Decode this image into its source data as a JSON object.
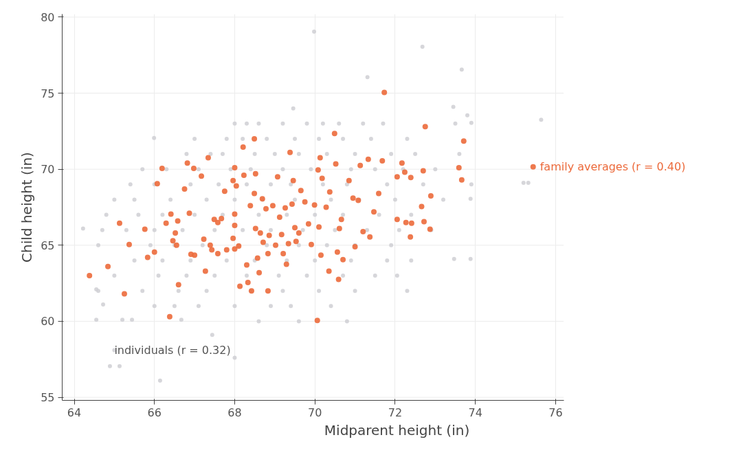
{
  "chart_data": {
    "type": "scatter",
    "xlabel": "Midparent height (in)",
    "ylabel": "Child height (in)",
    "xlim": [
      63.7,
      76.2
    ],
    "ylim": [
      54.8,
      80.2
    ],
    "xticks": [
      64,
      66,
      68,
      70,
      72,
      74,
      76
    ],
    "yticks": [
      55,
      60,
      65,
      70,
      75,
      80
    ],
    "grid": true,
    "marker": "circle",
    "series": [
      {
        "name": "individuals (r = 0.32)",
        "color": "#cfcfd4",
        "x": [
          64.22,
          64.55,
          64.55,
          64.72,
          64.89,
          65.0,
          65.13,
          65.2,
          65.44,
          65.99,
          66.14,
          66.67,
          67.44,
          68.0,
          69.98,
          72.68,
          73.66,
          71.31,
          75.64,
          75.2,
          75.32,
          73.88,
          73.88,
          73.47,
          73.45,
          73.8,
          73.9,
          69.46,
          68.0,
          68.3,
          68.6,
          69.2,
          69.8,
          70.2,
          70.6,
          71.2,
          71.7,
          73.5,
          67.0,
          67.8,
          68.2,
          68.8,
          69.5,
          70.1,
          70.7,
          71.4,
          72.3,
          66.8,
          67.4,
          67.7,
          68.5,
          69.0,
          69.6,
          70.3,
          71.0,
          71.9,
          72.5,
          73.6,
          65.7,
          66.3,
          67.1,
          67.9,
          68.4,
          69.2,
          69.9,
          70.9,
          71.5,
          72.2,
          73.0,
          65.4,
          66.0,
          66.9,
          67.6,
          68.3,
          68.9,
          69.4,
          70.2,
          70.8,
          71.8,
          72.7,
          73.9,
          65.0,
          65.5,
          66.4,
          67.3,
          68.0,
          68.7,
          69.5,
          70.4,
          71.1,
          72.0,
          73.2,
          64.8,
          65.6,
          66.2,
          67.0,
          67.7,
          68.6,
          69.3,
          70.0,
          70.7,
          71.6,
          72.4,
          64.7,
          65.3,
          66.0,
          66.7,
          67.5,
          68.2,
          68.9,
          69.7,
          70.5,
          71.3,
          72.1,
          72.9,
          64.6,
          65.9,
          66.5,
          67.2,
          68.1,
          68.8,
          69.6,
          70.3,
          71.0,
          71.9,
          65.5,
          66.2,
          66.9,
          67.8,
          68.5,
          69.3,
          70.0,
          70.9,
          71.8,
          72.4,
          65.0,
          66.1,
          66.8,
          67.5,
          68.3,
          69.1,
          69.8,
          70.7,
          71.5,
          64.6,
          65.7,
          66.6,
          67.3,
          68.4,
          69.2,
          70.1,
          71.0,
          72.3,
          66.0,
          66.5,
          67.1,
          68.0,
          68.9,
          69.4,
          70.4,
          68.6,
          69.6,
          70.8,
          72.05
        ],
        "values": [
          66.1,
          60.1,
          62.1,
          61.1,
          57.05,
          58.1,
          57.05,
          60.1,
          60.1,
          72.05,
          56.1,
          60.1,
          59.1,
          57.6,
          79.05,
          78.05,
          76.55,
          76.05,
          73.25,
          69.1,
          69.1,
          68.05,
          64.1,
          64.1,
          74.1,
          73.55,
          73.05,
          74.0,
          73,
          73,
          73,
          73,
          73,
          73,
          73,
          73,
          73,
          73,
          72,
          72,
          72,
          72,
          72,
          72,
          72,
          72,
          72,
          71,
          71,
          71,
          71,
          71,
          71,
          71,
          71,
          71,
          71,
          71,
          70,
          70,
          70,
          70,
          70,
          70,
          70,
          70,
          70,
          70,
          70,
          69,
          69,
          69,
          69,
          69,
          69,
          69,
          69,
          69,
          69,
          69,
          69,
          68,
          68,
          68,
          68,
          68,
          68,
          68,
          68,
          68,
          68,
          68,
          67,
          67,
          67,
          67,
          67,
          67,
          67,
          67,
          67,
          67,
          67,
          66,
          66,
          66,
          66,
          66,
          66,
          66,
          66,
          66,
          66,
          66,
          66,
          65,
          65,
          65,
          65,
          65,
          65,
          65,
          65,
          65,
          65,
          64,
          64,
          64,
          64,
          64,
          64,
          64,
          64,
          64,
          64,
          63,
          63,
          63,
          63,
          63,
          63,
          63,
          63,
          63,
          62,
          62,
          62,
          62,
          62,
          62,
          62,
          62,
          62,
          61,
          61,
          61,
          61,
          61,
          61,
          61,
          60,
          60,
          60,
          63.0
        ]
      },
      {
        "name": "family averages (r = 0.40)",
        "color": "#ec6a3b",
        "x": [
          64.38,
          64.84,
          65.13,
          65.25,
          65.37,
          65.76,
          65.83,
          66.0,
          66.07,
          66.19,
          66.29,
          66.38,
          66.41,
          66.46,
          66.52,
          66.55,
          66.58,
          66.6,
          66.75,
          66.82,
          66.87,
          66.91,
          66.98,
          67.0,
          67.17,
          67.23,
          67.27,
          67.34,
          67.39,
          67.43,
          67.49,
          67.58,
          67.58,
          67.67,
          67.75,
          67.8,
          67.96,
          67.96,
          68.0,
          68.0,
          68.0,
          68.0,
          68.04,
          68.1,
          68.13,
          68.21,
          68.23,
          68.3,
          68.33,
          68.39,
          68.42,
          68.49,
          68.49,
          68.52,
          68.52,
          68.57,
          68.61,
          68.64,
          68.69,
          68.71,
          68.78,
          68.83,
          68.83,
          68.86,
          68.95,
          69.02,
          69.07,
          69.12,
          69.17,
          69.21,
          69.26,
          69.29,
          69.34,
          69.38,
          69.43,
          69.46,
          69.5,
          69.53,
          69.6,
          69.65,
          69.75,
          69.84,
          69.91,
          69.99,
          70.06,
          70.08,
          70.1,
          70.13,
          70.15,
          70.18,
          70.28,
          70.37,
          70.35,
          70.49,
          70.52,
          70.56,
          70.59,
          70.61,
          70.66,
          70.7,
          70.85,
          70.95,
          71.0,
          71.08,
          71.13,
          71.2,
          71.33,
          71.37,
          71.47,
          71.59,
          71.68,
          71.73,
          72.05,
          72.05,
          72.17,
          72.24,
          72.27,
          72.38,
          72.39,
          72.41,
          72.66,
          72.7,
          72.72,
          72.75,
          72.87,
          72.89,
          73.59,
          73.71,
          73.66,
          75.44
        ],
        "values": [
          63.0,
          63.6,
          66.45,
          61.8,
          65.05,
          66.05,
          64.2,
          64.55,
          69.05,
          70.05,
          66.45,
          60.3,
          67.05,
          65.3,
          65.8,
          65.0,
          66.6,
          62.4,
          68.7,
          70.4,
          67.1,
          64.4,
          70.05,
          64.35,
          69.55,
          65.4,
          63.3,
          70.75,
          65.0,
          64.7,
          66.7,
          64.45,
          66.5,
          66.75,
          68.55,
          64.7,
          69.25,
          65.45,
          70.1,
          67.05,
          66.3,
          64.75,
          68.9,
          64.95,
          62.3,
          71.45,
          69.6,
          63.7,
          62.55,
          67.6,
          62.0,
          72.0,
          68.4,
          69.7,
          66.1,
          64.15,
          63.2,
          65.8,
          68.05,
          65.2,
          67.4,
          62.0,
          64.45,
          65.65,
          67.6,
          65.0,
          69.5,
          66.85,
          65.7,
          64.45,
          67.45,
          63.75,
          65.1,
          71.1,
          67.7,
          69.25,
          66.15,
          65.25,
          65.8,
          68.6,
          67.85,
          66.4,
          65.05,
          67.65,
          60.05,
          69.95,
          66.2,
          70.75,
          64.35,
          69.4,
          67.5,
          68.5,
          63.3,
          72.35,
          70.35,
          64.55,
          62.75,
          66.1,
          66.7,
          64.05,
          69.25,
          68.1,
          64.9,
          67.95,
          70.25,
          65.9,
          70.65,
          65.55,
          67.2,
          68.4,
          70.55,
          75.05,
          69.5,
          66.7,
          70.4,
          69.8,
          66.5,
          65.55,
          69.45,
          66.45,
          67.55,
          69.9,
          66.55,
          72.8,
          66.05,
          68.25,
          70.1,
          71.85,
          69.3,
          70.15
        ]
      }
    ]
  }
}
